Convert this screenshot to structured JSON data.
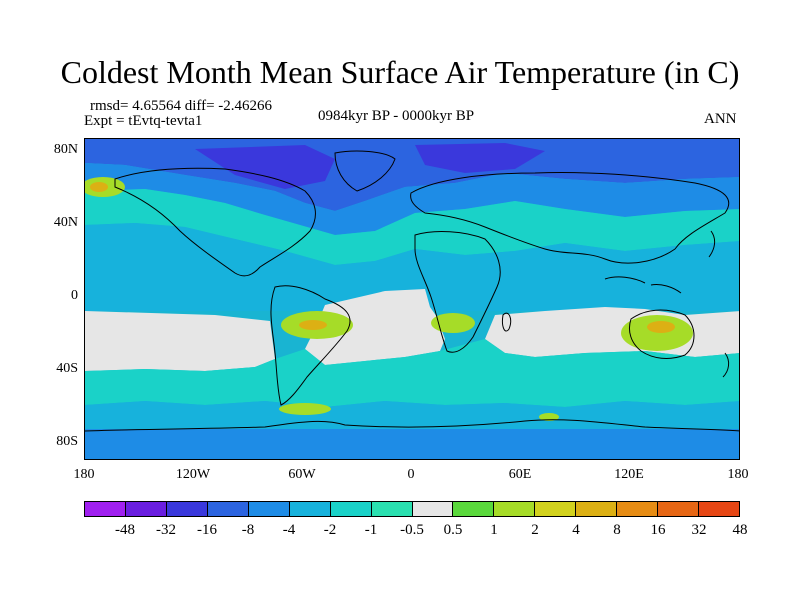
{
  "title": "Coldest Month Mean Surface Air Temperature (in C)",
  "stats": "rmsd= 4.65564 diff= -2.46266",
  "experiment": "Expt = tEvtq-tevta1",
  "period": "0984kyr BP - 0000kyr BP",
  "season": "ANN",
  "lat_labels": [
    "80N",
    "40N",
    "0",
    "40S",
    "80S"
  ],
  "lon_labels": [
    "180",
    "120W",
    "60W",
    "0",
    "60E",
    "120E",
    "180"
  ],
  "colorbar": {
    "colors": [
      "#a020f0",
      "#6a1ee0",
      "#3a38dc",
      "#2c64e0",
      "#1e8ce6",
      "#17b2dc",
      "#1ad2c8",
      "#2ae0b0",
      "#e6e6e6",
      "#5ad83c",
      "#a6dc28",
      "#d2d21e",
      "#dcb014",
      "#e68c14",
      "#e66614",
      "#e64614"
    ],
    "labels": [
      "-48",
      "-32",
      "-16",
      "-8",
      "-4",
      "-2",
      "-1",
      "-0.5",
      "0.5",
      "1",
      "2",
      "4",
      "8",
      "16",
      "32",
      "48"
    ]
  }
}
